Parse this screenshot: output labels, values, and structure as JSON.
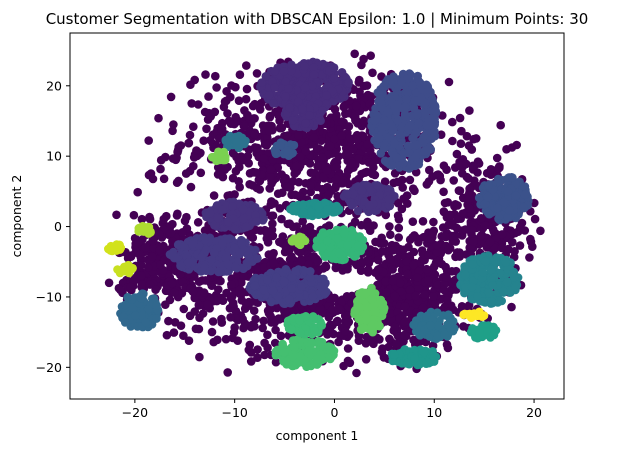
{
  "chart_data": {
    "type": "scatter",
    "title": "Customer Segmentation with DBSCAN Epsilon: 1.0 | Minimum Points: 30",
    "xlabel": "component 1",
    "ylabel": "component 2",
    "xlim": [
      -26.5,
      23
    ],
    "ylim": [
      -24.5,
      27.5
    ],
    "xticks": [
      -20,
      -10,
      0,
      10,
      20
    ],
    "yticks": [
      -20,
      -10,
      0,
      10,
      20
    ],
    "legend": "none",
    "colormap": "viridis",
    "noise_color": "#440154",
    "clusters": [
      {
        "color": "#472d7b",
        "center": [
          -3,
          20
        ],
        "spread": [
          4.5,
          3.5
        ],
        "n": 330
      },
      {
        "color": "#472d7b",
        "center": [
          -3,
          16
        ],
        "spread": [
          2,
          2
        ],
        "n": 70
      },
      {
        "color": "#46337e",
        "center": [
          3.5,
          4
        ],
        "spread": [
          2.6,
          2
        ],
        "n": 90
      },
      {
        "color": "#46337e",
        "center": [
          -10,
          1.5
        ],
        "spread": [
          3,
          2
        ],
        "n": 120
      },
      {
        "color": "#443a83",
        "center": [
          -12,
          -4
        ],
        "spread": [
          4.5,
          2.6
        ],
        "n": 200
      },
      {
        "color": "#433e85",
        "center": [
          -4.5,
          -8.5
        ],
        "spread": [
          4,
          2.5
        ],
        "n": 180
      },
      {
        "color": "#3e4c8a",
        "center": [
          7,
          15
        ],
        "spread": [
          3.3,
          7
        ],
        "n": 380
      },
      {
        "color": "#39568c",
        "center": [
          -5,
          11
        ],
        "spread": [
          1.2,
          1
        ],
        "n": 25
      },
      {
        "color": "#3b528b",
        "center": [
          17,
          4
        ],
        "spread": [
          2.5,
          3.2
        ],
        "n": 150
      },
      {
        "color": "#31688e",
        "center": [
          -19.5,
          -12
        ],
        "spread": [
          2,
          2.5
        ],
        "n": 100
      },
      {
        "color": "#2d708e",
        "center": [
          10,
          -14
        ],
        "spread": [
          2.2,
          2
        ],
        "n": 80
      },
      {
        "color": "#2c728e",
        "center": [
          -10,
          12
        ],
        "spread": [
          1.1,
          1
        ],
        "n": 25
      },
      {
        "color": "#25838e",
        "center": [
          15.5,
          -7.5
        ],
        "spread": [
          3,
          3.5
        ],
        "n": 200
      },
      {
        "color": "#21918c",
        "center": [
          -2,
          2.5
        ],
        "spread": [
          2.5,
          1
        ],
        "n": 70
      },
      {
        "color": "#1f958b",
        "center": [
          8,
          -18.5
        ],
        "spread": [
          2.5,
          1.2
        ],
        "n": 80
      },
      {
        "color": "#1fa088",
        "center": [
          15,
          -15
        ],
        "spread": [
          1.4,
          1
        ],
        "n": 40
      },
      {
        "color": "#34b679",
        "center": [
          0.5,
          -2.5
        ],
        "spread": [
          2.5,
          2.3
        ],
        "n": 130
      },
      {
        "color": "#44bf70",
        "center": [
          -3,
          -18
        ],
        "spread": [
          3,
          2
        ],
        "n": 150
      },
      {
        "color": "#3bbb75",
        "center": [
          -3,
          -14
        ],
        "spread": [
          1.8,
          1.5
        ],
        "n": 60
      },
      {
        "color": "#5ec962",
        "center": [
          3.5,
          -12
        ],
        "spread": [
          1.5,
          3.3
        ],
        "n": 110
      },
      {
        "color": "#7ad151",
        "center": [
          -11.5,
          10
        ],
        "spread": [
          0.8,
          0.8
        ],
        "n": 20
      },
      {
        "color": "#84d44b",
        "center": [
          -3.5,
          -2
        ],
        "spread": [
          0.8,
          0.6
        ],
        "n": 15
      },
      {
        "color": "#addc30",
        "center": [
          -19,
          -0.5
        ],
        "spread": [
          0.8,
          0.6
        ],
        "n": 15
      },
      {
        "color": "#c8e020",
        "center": [
          -21,
          -6
        ],
        "spread": [
          0.8,
          0.8
        ],
        "n": 15
      },
      {
        "color": "#d2e21b",
        "center": [
          -22,
          -3
        ],
        "spread": [
          0.8,
          0.6
        ],
        "n": 15
      },
      {
        "color": "#fde725",
        "center": [
          14,
          -12.5
        ],
        "spread": [
          1.1,
          0.5
        ],
        "n": 15
      }
    ],
    "noise_regions": [
      {
        "center": [
          -2,
          12
        ],
        "spread": [
          11,
          9
        ],
        "n": 900
      },
      {
        "center": [
          -3,
          -8
        ],
        "spread": [
          11,
          8
        ],
        "n": 900
      },
      {
        "center": [
          -17,
          -5
        ],
        "spread": [
          4,
          6
        ],
        "n": 250
      },
      {
        "center": [
          15,
          1
        ],
        "spread": [
          4,
          8
        ],
        "n": 300
      },
      {
        "center": [
          8,
          -10
        ],
        "spread": [
          5,
          7
        ],
        "n": 350
      }
    ]
  }
}
